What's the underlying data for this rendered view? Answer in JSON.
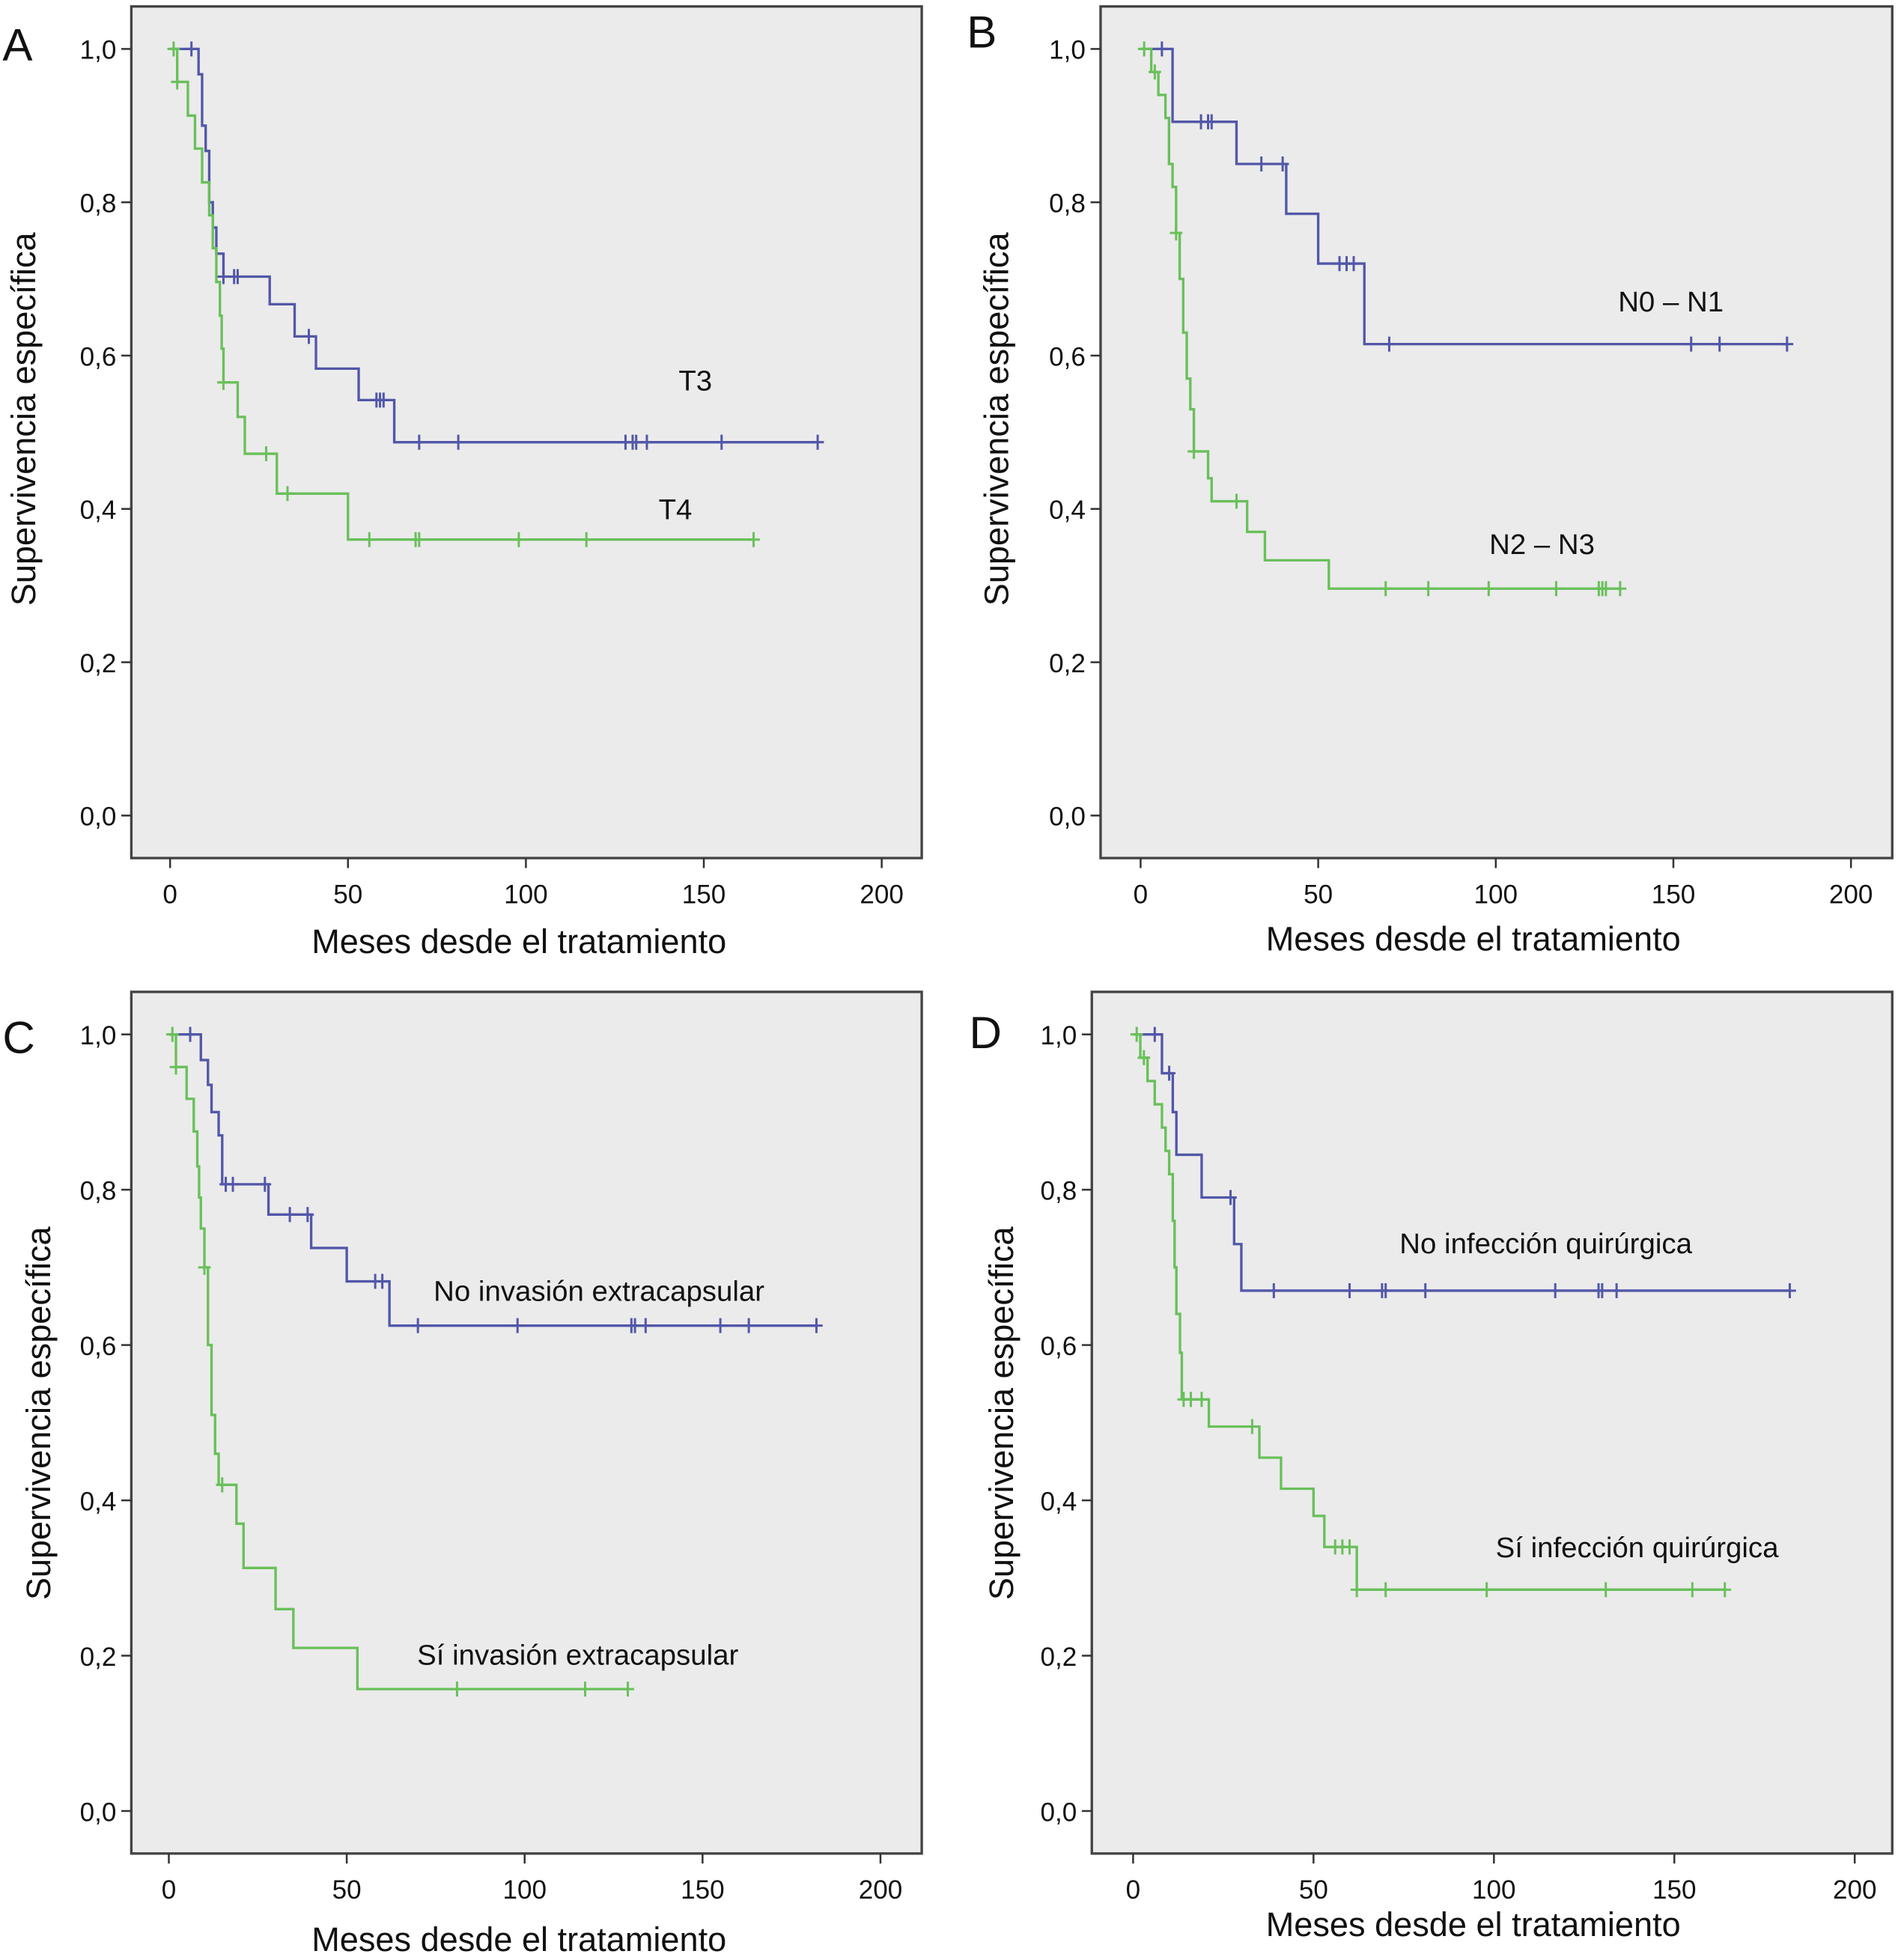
{
  "colors": {
    "group1": "#5257a8",
    "group2": "#69c05a",
    "plot_bg": "#ebebeb",
    "frame": "#444444"
  },
  "chart_data": [
    {
      "panel": "A",
      "type": "line",
      "subtype": "kaplan-meier step",
      "xlabel": "Meses desde el tratamiento",
      "ylabel": "Supervivencia específica",
      "xlim": [
        0,
        200
      ],
      "ylim": [
        0,
        1
      ],
      "xticks": [
        "0",
        "50",
        "100",
        "150",
        "200"
      ],
      "yticks": [
        "0,0",
        "0,2",
        "0,4",
        "0,6",
        "0,8",
        "1,0"
      ],
      "grid": false,
      "series": [
        {
          "name": "T3",
          "color": "#5257a8",
          "steps": [
            [
              0,
              1.0
            ],
            [
              8,
              0.967
            ],
            [
              9,
              0.9
            ],
            [
              10,
              0.867
            ],
            [
              11,
              0.8
            ],
            [
              12,
              0.767
            ],
            [
              13,
              0.733
            ],
            [
              15,
              0.703
            ],
            [
              28,
              0.667
            ],
            [
              35,
              0.625
            ],
            [
              41,
              0.583
            ],
            [
              53,
              0.542
            ],
            [
              63,
              0.487
            ]
          ],
          "end": 182,
          "censored": [
            6,
            15,
            18,
            19,
            39,
            58,
            59,
            60,
            70,
            81,
            128,
            130,
            131,
            134,
            155,
            182
          ]
        },
        {
          "name": "T4",
          "color": "#69c05a",
          "steps": [
            [
              0,
              1.0
            ],
            [
              2,
              0.957
            ],
            [
              5,
              0.913
            ],
            [
              7,
              0.87
            ],
            [
              9,
              0.826
            ],
            [
              11,
              0.783
            ],
            [
              12,
              0.74
            ],
            [
              13,
              0.696
            ],
            [
              14,
              0.652
            ],
            [
              14.5,
              0.609
            ],
            [
              15,
              0.565
            ],
            [
              19,
              0.52
            ],
            [
              21,
              0.472
            ],
            [
              30,
              0.42
            ],
            [
              50,
              0.36
            ]
          ],
          "end": 164,
          "censored": [
            1,
            2,
            15,
            27,
            33,
            56,
            69,
            70,
            98,
            117,
            164
          ]
        }
      ]
    },
    {
      "panel": "B",
      "type": "line",
      "subtype": "kaplan-meier step",
      "xlabel": "Meses desde el tratamiento",
      "ylabel": "Supervivencia específica",
      "xlim": [
        0,
        200
      ],
      "ylim": [
        0,
        1
      ],
      "xticks": [
        "0",
        "50",
        "100",
        "150",
        "200"
      ],
      "yticks": [
        "0,0",
        "0,2",
        "0,4",
        "0,6",
        "0,8",
        "1,0"
      ],
      "grid": false,
      "series": [
        {
          "name": "N0 – N1",
          "color": "#5257a8",
          "steps": [
            [
              0,
              1.0
            ],
            [
              9,
              0.905
            ],
            [
              27,
              0.85
            ],
            [
              41,
              0.785
            ],
            [
              50,
              0.72
            ],
            [
              63,
              0.615
            ]
          ],
          "end": 182,
          "censored": [
            6,
            17,
            19,
            20,
            34,
            40,
            56,
            58,
            60,
            70,
            155,
            163,
            182
          ]
        },
        {
          "name": "N2 – N3",
          "color": "#69c05a",
          "steps": [
            [
              0,
              1.0
            ],
            [
              3,
              0.97
            ],
            [
              5,
              0.94
            ],
            [
              7,
              0.91
            ],
            [
              8,
              0.85
            ],
            [
              9,
              0.82
            ],
            [
              10,
              0.76
            ],
            [
              11,
              0.7
            ],
            [
              12,
              0.63
            ],
            [
              13,
              0.57
            ],
            [
              14,
              0.53
            ],
            [
              15,
              0.475
            ],
            [
              19,
              0.44
            ],
            [
              20,
              0.41
            ],
            [
              30,
              0.37
            ],
            [
              35,
              0.333
            ],
            [
              53,
              0.296
            ]
          ],
          "end": 135,
          "censored": [
            1,
            4,
            10,
            15,
            27,
            69,
            81,
            98,
            117,
            129,
            130,
            131,
            135
          ]
        }
      ]
    },
    {
      "panel": "C",
      "type": "line",
      "subtype": "kaplan-meier step",
      "xlabel": "Meses desde el tratamiento",
      "ylabel": "Supervivencia específica",
      "xlim": [
        0,
        200
      ],
      "ylim": [
        0,
        1
      ],
      "xticks": [
        "0",
        "50",
        "100",
        "150",
        "200"
      ],
      "yticks": [
        "0,0",
        "0,2",
        "0,4",
        "0,6",
        "0,8",
        "1,0"
      ],
      "grid": false,
      "series": [
        {
          "name": "No invasión extracapsular",
          "color": "#5257a8",
          "steps": [
            [
              0,
              1.0
            ],
            [
              9,
              0.967
            ],
            [
              11,
              0.935
            ],
            [
              12,
              0.9
            ],
            [
              14,
              0.87
            ],
            [
              15,
              0.807
            ],
            [
              28,
              0.768
            ],
            [
              40,
              0.725
            ],
            [
              50,
              0.682
            ],
            [
              62,
              0.625
            ]
          ],
          "end": 182,
          "censored": [
            6,
            16,
            18,
            27,
            34,
            39,
            58,
            60,
            70,
            98,
            130,
            131,
            134,
            155,
            163,
            182
          ]
        },
        {
          "name": "Sí invasión extracapsular",
          "color": "#69c05a",
          "steps": [
            [
              0,
              1.0
            ],
            [
              2,
              0.958
            ],
            [
              5,
              0.917
            ],
            [
              7,
              0.875
            ],
            [
              8,
              0.83
            ],
            [
              8.5,
              0.79
            ],
            [
              9,
              0.75
            ],
            [
              10,
              0.7
            ],
            [
              11,
              0.6
            ],
            [
              12,
              0.51
            ],
            [
              13,
              0.46
            ],
            [
              14,
              0.42
            ],
            [
              19,
              0.37
            ],
            [
              21,
              0.313
            ],
            [
              30,
              0.26
            ],
            [
              35,
              0.21
            ],
            [
              53,
              0.157
            ]
          ],
          "end": 129,
          "censored": [
            1,
            2,
            10,
            15,
            81,
            117,
            129
          ]
        }
      ]
    },
    {
      "panel": "D",
      "type": "line",
      "subtype": "kaplan-meier step",
      "xlabel": "Meses desde el tratamiento",
      "ylabel": "Supervivencia específica",
      "xlim": [
        0,
        200
      ],
      "ylim": [
        0,
        1
      ],
      "xticks": [
        "0",
        "50",
        "100",
        "150",
        "200"
      ],
      "yticks": [
        "0,0",
        "0,2",
        "0,4",
        "0,6",
        "0,8",
        "1,0"
      ],
      "grid": false,
      "series": [
        {
          "name": "No infección quirúrgica",
          "color": "#5257a8",
          "steps": [
            [
              0,
              1.0
            ],
            [
              8,
              0.95
            ],
            [
              11,
              0.9
            ],
            [
              12,
              0.845
            ],
            [
              19,
              0.79
            ],
            [
              28,
              0.73
            ],
            [
              30,
              0.67
            ]
          ],
          "end": 182,
          "censored": [
            6,
            10,
            27,
            39,
            60,
            69,
            70,
            81,
            117,
            129,
            130,
            134,
            182
          ]
        },
        {
          "name": "Sí infección quirúrgica",
          "color": "#69c05a",
          "steps": [
            [
              0,
              1.0
            ],
            [
              2,
              0.97
            ],
            [
              4,
              0.94
            ],
            [
              6,
              0.91
            ],
            [
              8,
              0.88
            ],
            [
              9,
              0.85
            ],
            [
              10,
              0.82
            ],
            [
              11,
              0.76
            ],
            [
              11.5,
              0.7
            ],
            [
              12,
              0.64
            ],
            [
              13,
              0.59
            ],
            [
              13.5,
              0.53
            ],
            [
              21,
              0.495
            ],
            [
              35,
              0.455
            ],
            [
              41,
              0.415
            ],
            [
              50,
              0.38
            ],
            [
              53,
              0.34
            ],
            [
              62,
              0.285
            ]
          ],
          "end": 164,
          "censored": [
            1,
            3,
            14,
            16,
            19,
            33,
            56,
            58,
            60,
            62,
            70,
            98,
            131,
            155,
            164
          ]
        }
      ]
    }
  ]
}
